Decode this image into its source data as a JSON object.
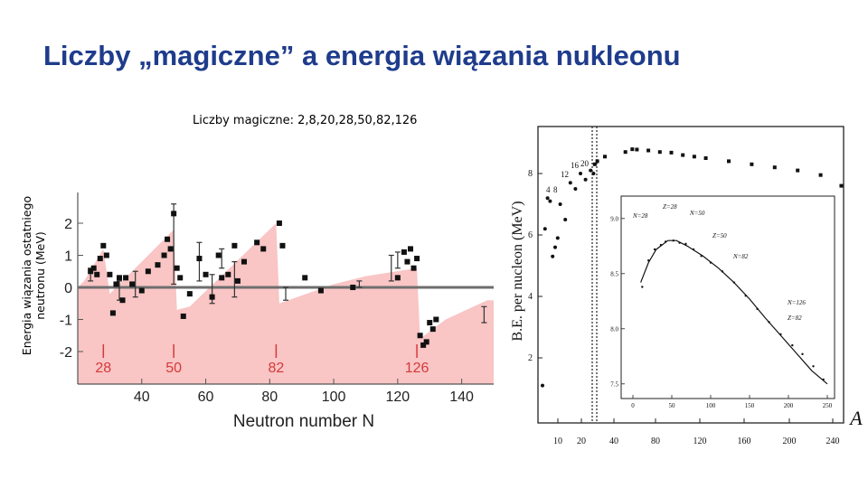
{
  "slide": {
    "title": "Liczby „magiczne” a energia wiązania nukleonu",
    "subtitle": "Liczby magiczne:  2,8,20,28,50,82,126",
    "ylabel_side": "Energia wiązania ostatniego neutronu (MeV)"
  },
  "chart_data": [
    {
      "type": "scatter",
      "xlabel": "Neutron number N",
      "ylabel": "",
      "xlim": [
        20,
        150
      ],
      "ylim": [
        -3,
        3
      ],
      "xticks": [
        40,
        60,
        80,
        100,
        120,
        140
      ],
      "yticks": [
        2,
        1,
        0,
        -1,
        -2
      ],
      "ytick_labels": [
        "2",
        "1",
        "0",
        "-1",
        "-2"
      ],
      "magic_numbers": [
        28,
        50,
        82,
        126
      ],
      "magic_labels": [
        "28",
        "50",
        "82",
        "126"
      ],
      "colors": {
        "shade": "#f9c5c5",
        "magic": "#d43a3a",
        "baseline": "#6e6e6e",
        "points": "#111111"
      },
      "shade_envelope": [
        [
          20,
          0
        ],
        [
          22,
          0.2
        ],
        [
          28,
          1.2
        ],
        [
          30,
          -0.2
        ],
        [
          50,
          1.8
        ],
        [
          51,
          -0.7
        ],
        [
          55,
          -0.6
        ],
        [
          82,
          2.0
        ],
        [
          83,
          -0.5
        ],
        [
          100,
          0.1
        ],
        [
          110,
          0.35
        ],
        [
          126,
          0.6
        ],
        [
          127,
          -1.6
        ],
        [
          135,
          -1.0
        ],
        [
          148,
          -0.4
        ],
        [
          150,
          -0.4
        ]
      ],
      "points": [
        [
          24,
          0.5
        ],
        [
          25,
          0.6
        ],
        [
          26,
          0.4
        ],
        [
          27,
          0.9
        ],
        [
          28,
          1.3
        ],
        [
          29,
          1.0
        ],
        [
          30,
          0.4
        ],
        [
          31,
          -0.8
        ],
        [
          32,
          0.1
        ],
        [
          33,
          0.3
        ],
        [
          34,
          -0.4
        ],
        [
          35,
          0.3
        ],
        [
          37,
          0.1
        ],
        [
          40,
          -0.1
        ],
        [
          42,
          0.5
        ],
        [
          45,
          0.7
        ],
        [
          47,
          1.0
        ],
        [
          48,
          1.5
        ],
        [
          49,
          1.2
        ],
        [
          50,
          2.3
        ],
        [
          51,
          0.6
        ],
        [
          52,
          0.3
        ],
        [
          53,
          -0.9
        ],
        [
          55,
          -0.2
        ],
        [
          58,
          0.9
        ],
        [
          60,
          0.4
        ],
        [
          62,
          -0.3
        ],
        [
          64,
          1.0
        ],
        [
          65,
          0.3
        ],
        [
          67,
          0.4
        ],
        [
          69,
          1.3
        ],
        [
          70,
          0.2
        ],
        [
          72,
          0.8
        ],
        [
          76,
          1.4
        ],
        [
          78,
          1.2
        ],
        [
          83,
          2.0
        ],
        [
          84,
          1.3
        ],
        [
          91,
          0.3
        ],
        [
          96,
          -0.1
        ],
        [
          106,
          0.0
        ],
        [
          120,
          0.3
        ],
        [
          122,
          1.1
        ],
        [
          123,
          0.8
        ],
        [
          124,
          1.2
        ],
        [
          125,
          0.6
        ],
        [
          126,
          0.9
        ],
        [
          127,
          -1.5
        ],
        [
          128,
          -1.8
        ],
        [
          129,
          -1.7
        ],
        [
          130,
          -1.1
        ],
        [
          131,
          -1.3
        ],
        [
          132,
          -1.0
        ]
      ],
      "error_bars": [
        [
          24,
          0.2,
          0.6
        ],
        [
          33,
          -0.4,
          0.2
        ],
        [
          38,
          -0.3,
          0.5
        ],
        [
          50,
          0.1,
          2.6
        ],
        [
          58,
          0.2,
          1.4
        ],
        [
          62,
          -0.5,
          0.4
        ],
        [
          65,
          0.6,
          1.2
        ],
        [
          69,
          -0.3,
          0.8
        ],
        [
          85,
          -0.4,
          0.0
        ],
        [
          108,
          0.0,
          0.2
        ],
        [
          118,
          0.2,
          1.0
        ],
        [
          120,
          0.6,
          1.1
        ],
        [
          147,
          -1.1,
          -0.6
        ]
      ]
    },
    {
      "type": "line",
      "xlabel": "A",
      "ylabel": "B.E. per nucleon (MeV)",
      "xlim": [
        0,
        245
      ],
      "ylim": [
        0,
        9.5
      ],
      "xticks": [
        10,
        20,
        40,
        80,
        120,
        160,
        200,
        240
      ],
      "yticks": [
        2,
        4,
        6,
        8
      ],
      "point_labels": [
        "4",
        "8",
        "12",
        "16",
        "20"
      ],
      "points": [
        [
          1,
          1.1
        ],
        [
          2,
          6.2
        ],
        [
          3,
          7.2
        ],
        [
          4,
          7.1
        ],
        [
          5,
          5.3
        ],
        [
          6,
          5.6
        ],
        [
          7,
          5.9
        ],
        [
          8,
          7.0
        ],
        [
          10,
          6.5
        ],
        [
          12,
          7.7
        ],
        [
          14,
          7.5
        ],
        [
          16,
          8.0
        ],
        [
          18,
          7.8
        ],
        [
          20,
          8.1
        ],
        [
          22,
          8.0
        ],
        [
          24,
          8.3
        ],
        [
          28,
          8.4
        ],
        [
          40,
          8.55
        ],
        [
          50,
          8.7
        ],
        [
          56,
          8.79
        ],
        [
          60,
          8.78
        ],
        [
          70,
          8.75
        ],
        [
          80,
          8.7
        ],
        [
          90,
          8.68
        ],
        [
          100,
          8.6
        ],
        [
          110,
          8.55
        ],
        [
          120,
          8.5
        ],
        [
          140,
          8.4
        ],
        [
          160,
          8.3
        ],
        [
          180,
          8.2
        ],
        [
          200,
          8.1
        ],
        [
          220,
          7.95
        ],
        [
          238,
          7.6
        ]
      ]
    },
    {
      "type": "line",
      "subtitle": "inset",
      "xticks": [
        0,
        50,
        100,
        150,
        200,
        250
      ],
      "yticks": [
        7.5,
        8.0,
        8.5,
        9.0
      ],
      "ytick_labels": [
        "7.5",
        "8.0",
        "8.5",
        "9.0"
      ],
      "annotations": [
        "N=28",
        "Z=28",
        "N=50",
        "Z=50",
        "N=82",
        "N=126",
        "Z=82"
      ],
      "curve": [
        [
          10,
          8.42
        ],
        [
          20,
          8.6
        ],
        [
          30,
          8.72
        ],
        [
          45,
          8.8
        ],
        [
          56,
          8.8
        ],
        [
          70,
          8.75
        ],
        [
          90,
          8.66
        ],
        [
          110,
          8.55
        ],
        [
          130,
          8.42
        ],
        [
          150,
          8.27
        ],
        [
          170,
          8.1
        ],
        [
          190,
          7.94
        ],
        [
          210,
          7.78
        ],
        [
          230,
          7.62
        ],
        [
          250,
          7.5
        ]
      ],
      "points": [
        [
          12,
          8.38
        ],
        [
          20,
          8.62
        ],
        [
          28,
          8.72
        ],
        [
          36,
          8.76
        ],
        [
          42,
          8.79
        ],
        [
          52,
          8.8
        ],
        [
          60,
          8.78
        ],
        [
          68,
          8.77
        ],
        [
          78,
          8.72
        ],
        [
          88,
          8.66
        ],
        [
          100,
          8.6
        ],
        [
          115,
          8.52
        ],
        [
          130,
          8.42
        ],
        [
          145,
          8.3
        ],
        [
          160,
          8.18
        ],
        [
          175,
          8.06
        ],
        [
          190,
          7.95
        ],
        [
          205,
          7.85
        ],
        [
          218,
          7.77
        ],
        [
          232,
          7.66
        ],
        [
          245,
          7.54
        ]
      ]
    }
  ]
}
